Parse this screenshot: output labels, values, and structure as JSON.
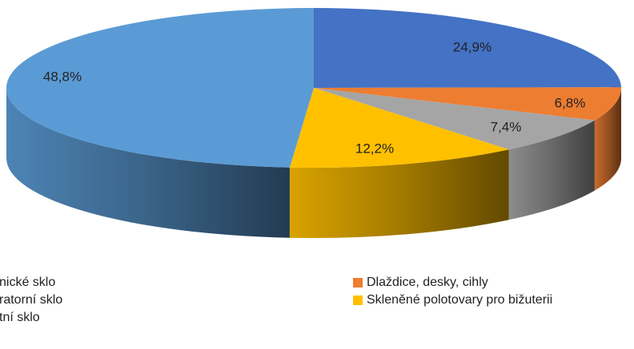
{
  "chart_data": {
    "type": "pie",
    "categories": [
      "nické sklo",
      "Dlaždice, desky, cihly",
      "ratorní sklo",
      "Skleněné polotovary pro bižuterii",
      "tní sklo"
    ],
    "values": [
      24.9,
      6.8,
      7.4,
      12.2,
      48.8
    ],
    "value_labels": [
      "24,9%",
      "6,8%",
      "7,4%",
      "12,2%",
      "48,8%"
    ],
    "colors": [
      "#4472c4",
      "#ed7d31",
      "#a5a5a5",
      "#ffc000",
      "#5b9bd5"
    ]
  }
}
